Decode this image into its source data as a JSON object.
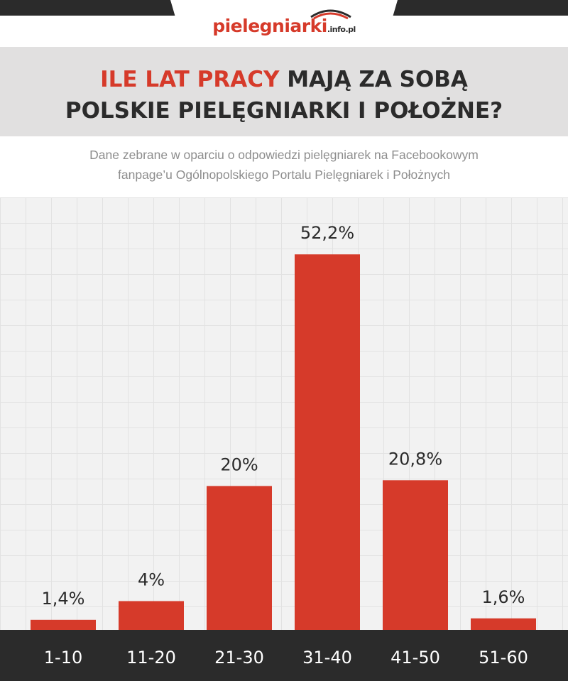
{
  "logo": {
    "main": "pielegniarki",
    "suffix": ".info.pl"
  },
  "title": {
    "highlight": "ILE LAT PRACY",
    "rest": " MAJĄ ZA SOBĄ",
    "line2": "POLSKIE PIELĘGNIARKI I POŁOŻNE?"
  },
  "subtitle": {
    "line1": "Dane zebrane w oparciu o odpowiedzi pielęgniarek na Facebookowym",
    "line2": "fanpage’u Ogólnopolskiego Portalu Pielęgniarek i Położnych"
  },
  "colors": {
    "accent": "#d63a2a",
    "dark": "#2b2b2b",
    "header_bg": "#e1e0e0",
    "grid_bg": "#f2f2f2"
  },
  "chart_data": {
    "type": "bar",
    "categories": [
      "1-10",
      "11-20",
      "21-30",
      "31-40",
      "41-50",
      "51-60"
    ],
    "values": [
      1.4,
      4,
      20,
      52.2,
      20.8,
      1.6
    ],
    "labels": [
      "1,4%",
      "4%",
      "20%",
      "52,2%",
      "20,8%",
      "1,6%"
    ],
    "ylim": [
      0,
      60
    ],
    "grid": true,
    "legend": "none"
  }
}
